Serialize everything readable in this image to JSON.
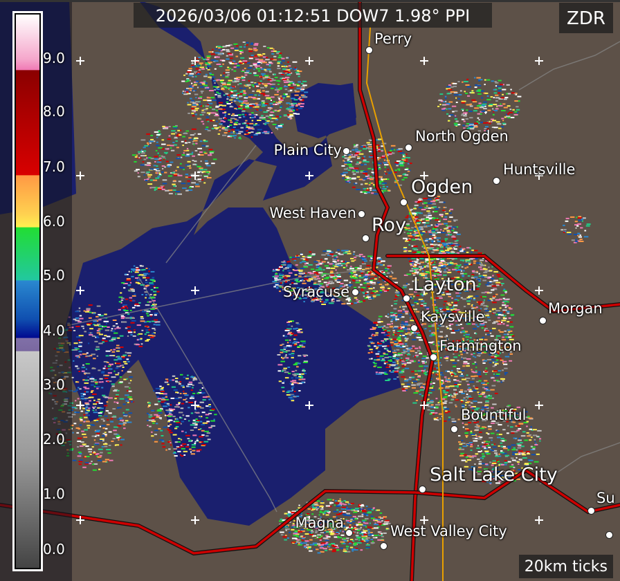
{
  "header": {
    "title": "2026/03/06 01:12:51 DOW7 1.98° PPI",
    "variable": "ZDR"
  },
  "footer": {
    "tick_label": "20km ticks"
  },
  "colorbar": {
    "labels": [
      "9.0",
      "8.0",
      "7.0",
      "6.0",
      "5.0",
      "4.0",
      "3.0",
      "2.0",
      "1.0",
      "0.0"
    ],
    "range": [
      0,
      10
    ]
  },
  "colors": {
    "lake": "#1a1f6e",
    "land": "#5d5148",
    "highway": "#b00000",
    "road": "#e8a000"
  },
  "cities": [
    {
      "name": "Perry",
      "size": "normal"
    },
    {
      "name": "Plain City",
      "size": "normal"
    },
    {
      "name": "North Ogden",
      "size": "normal"
    },
    {
      "name": "Huntsville",
      "size": "normal"
    },
    {
      "name": "Ogden",
      "size": "big"
    },
    {
      "name": "West Haven",
      "size": "normal"
    },
    {
      "name": "Roy",
      "size": "big"
    },
    {
      "name": "Syracuse",
      "size": "normal"
    },
    {
      "name": "Layton",
      "size": "big"
    },
    {
      "name": "Kaysville",
      "size": "normal"
    },
    {
      "name": "Farmington",
      "size": "normal"
    },
    {
      "name": "Morgan",
      "size": "normal"
    },
    {
      "name": "Bountiful",
      "size": "normal"
    },
    {
      "name": "Salt Lake City",
      "size": "big"
    },
    {
      "name": "Magna",
      "size": "normal"
    },
    {
      "name": "West Valley City",
      "size": "normal"
    },
    {
      "name": "Su",
      "size": "normal"
    }
  ]
}
